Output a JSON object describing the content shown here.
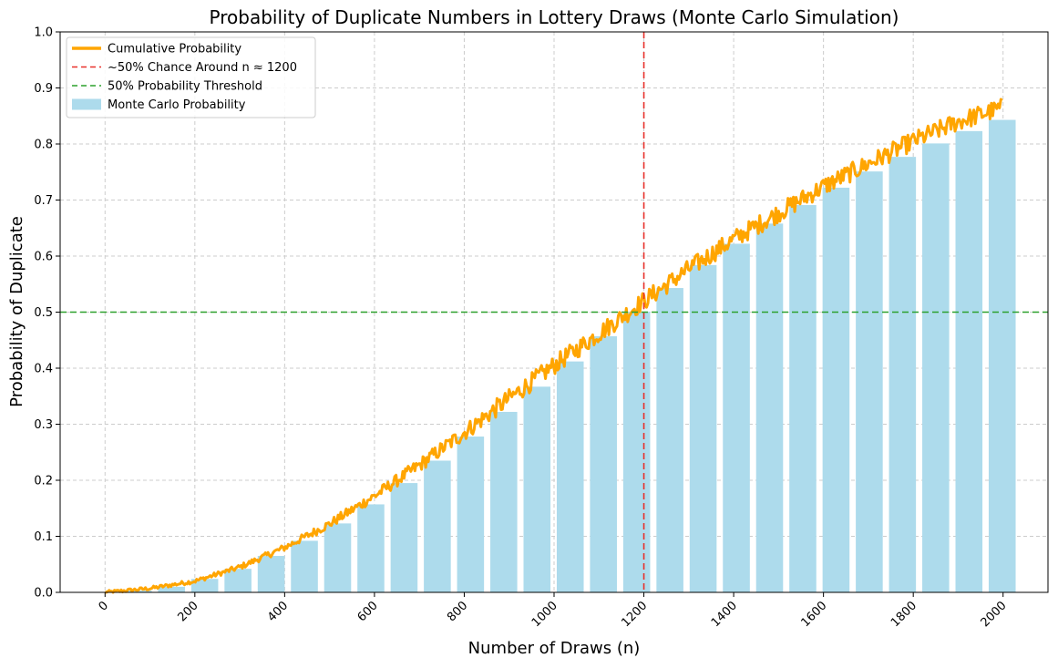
{
  "chart_data": {
    "type": "bar",
    "title": "Probability of Duplicate Numbers in Lottery Draws (Monte Carlo Simulation)",
    "xlabel": "Number of Draws (n)",
    "ylabel": "Probability of Duplicate",
    "xlim": [
      -100,
      2100
    ],
    "ylim": [
      0,
      1.0
    ],
    "grid": true,
    "x_ticks": [
      0,
      200,
      400,
      600,
      800,
      1000,
      1200,
      1400,
      1600,
      1800,
      2000
    ],
    "y_ticks": [
      0.0,
      0.1,
      0.2,
      0.3,
      0.4,
      0.5,
      0.6,
      0.7,
      0.8,
      0.9,
      1.0
    ],
    "legend_position": "top-left",
    "legend": [
      {
        "label": "Cumulative Probability",
        "kind": "line",
        "color": "#FFA500"
      },
      {
        "label": "~50% Chance Around n ≈ 1200",
        "kind": "dashed",
        "color": "#E8302A"
      },
      {
        "label": "50% Probability Threshold",
        "kind": "dashed",
        "color": "#2CA02C"
      },
      {
        "label": "Monte Carlo Probability",
        "kind": "bar",
        "color": "#ADDBEC"
      }
    ],
    "series": [
      {
        "name": "Monte Carlo Probability",
        "kind": "bar",
        "color": "#ADDBEC",
        "bar_width": 60,
        "x": [
          0,
          74,
          148,
          222,
          296,
          370,
          444,
          518,
          592,
          666,
          740,
          814,
          888,
          962,
          1036,
          1110,
          1184,
          1258,
          1332,
          1406,
          1480,
          1554,
          1628,
          1702,
          1776,
          1850,
          1924,
          1998
        ],
        "values": [
          0.0,
          0.003,
          0.01,
          0.024,
          0.042,
          0.065,
          0.092,
          0.123,
          0.157,
          0.195,
          0.235,
          0.278,
          0.322,
          0.367,
          0.412,
          0.457,
          0.501,
          0.543,
          0.584,
          0.622,
          0.658,
          0.691,
          0.722,
          0.751,
          0.777,
          0.801,
          0.823,
          0.843
        ]
      },
      {
        "name": "Cumulative Probability",
        "kind": "line",
        "color": "#FFA500",
        "x": [
          0,
          100,
          200,
          300,
          400,
          500,
          600,
          700,
          800,
          900,
          1000,
          1100,
          1200,
          1300,
          1400,
          1500,
          1600,
          1700,
          1800,
          1900,
          2000
        ],
        "values": [
          0.0,
          0.007,
          0.02,
          0.045,
          0.08,
          0.122,
          0.172,
          0.227,
          0.285,
          0.346,
          0.405,
          0.462,
          0.52,
          0.577,
          0.63,
          0.677,
          0.724,
          0.765,
          0.805,
          0.84,
          0.865
        ]
      }
    ],
    "reference_lines": [
      {
        "label": "~50% Chance Around n ≈ 1200",
        "orientation": "vertical",
        "value": 1200,
        "color": "#E8302A"
      },
      {
        "label": "50% Probability Threshold",
        "orientation": "horizontal",
        "value": 0.5,
        "color": "#2CA02C"
      }
    ]
  }
}
